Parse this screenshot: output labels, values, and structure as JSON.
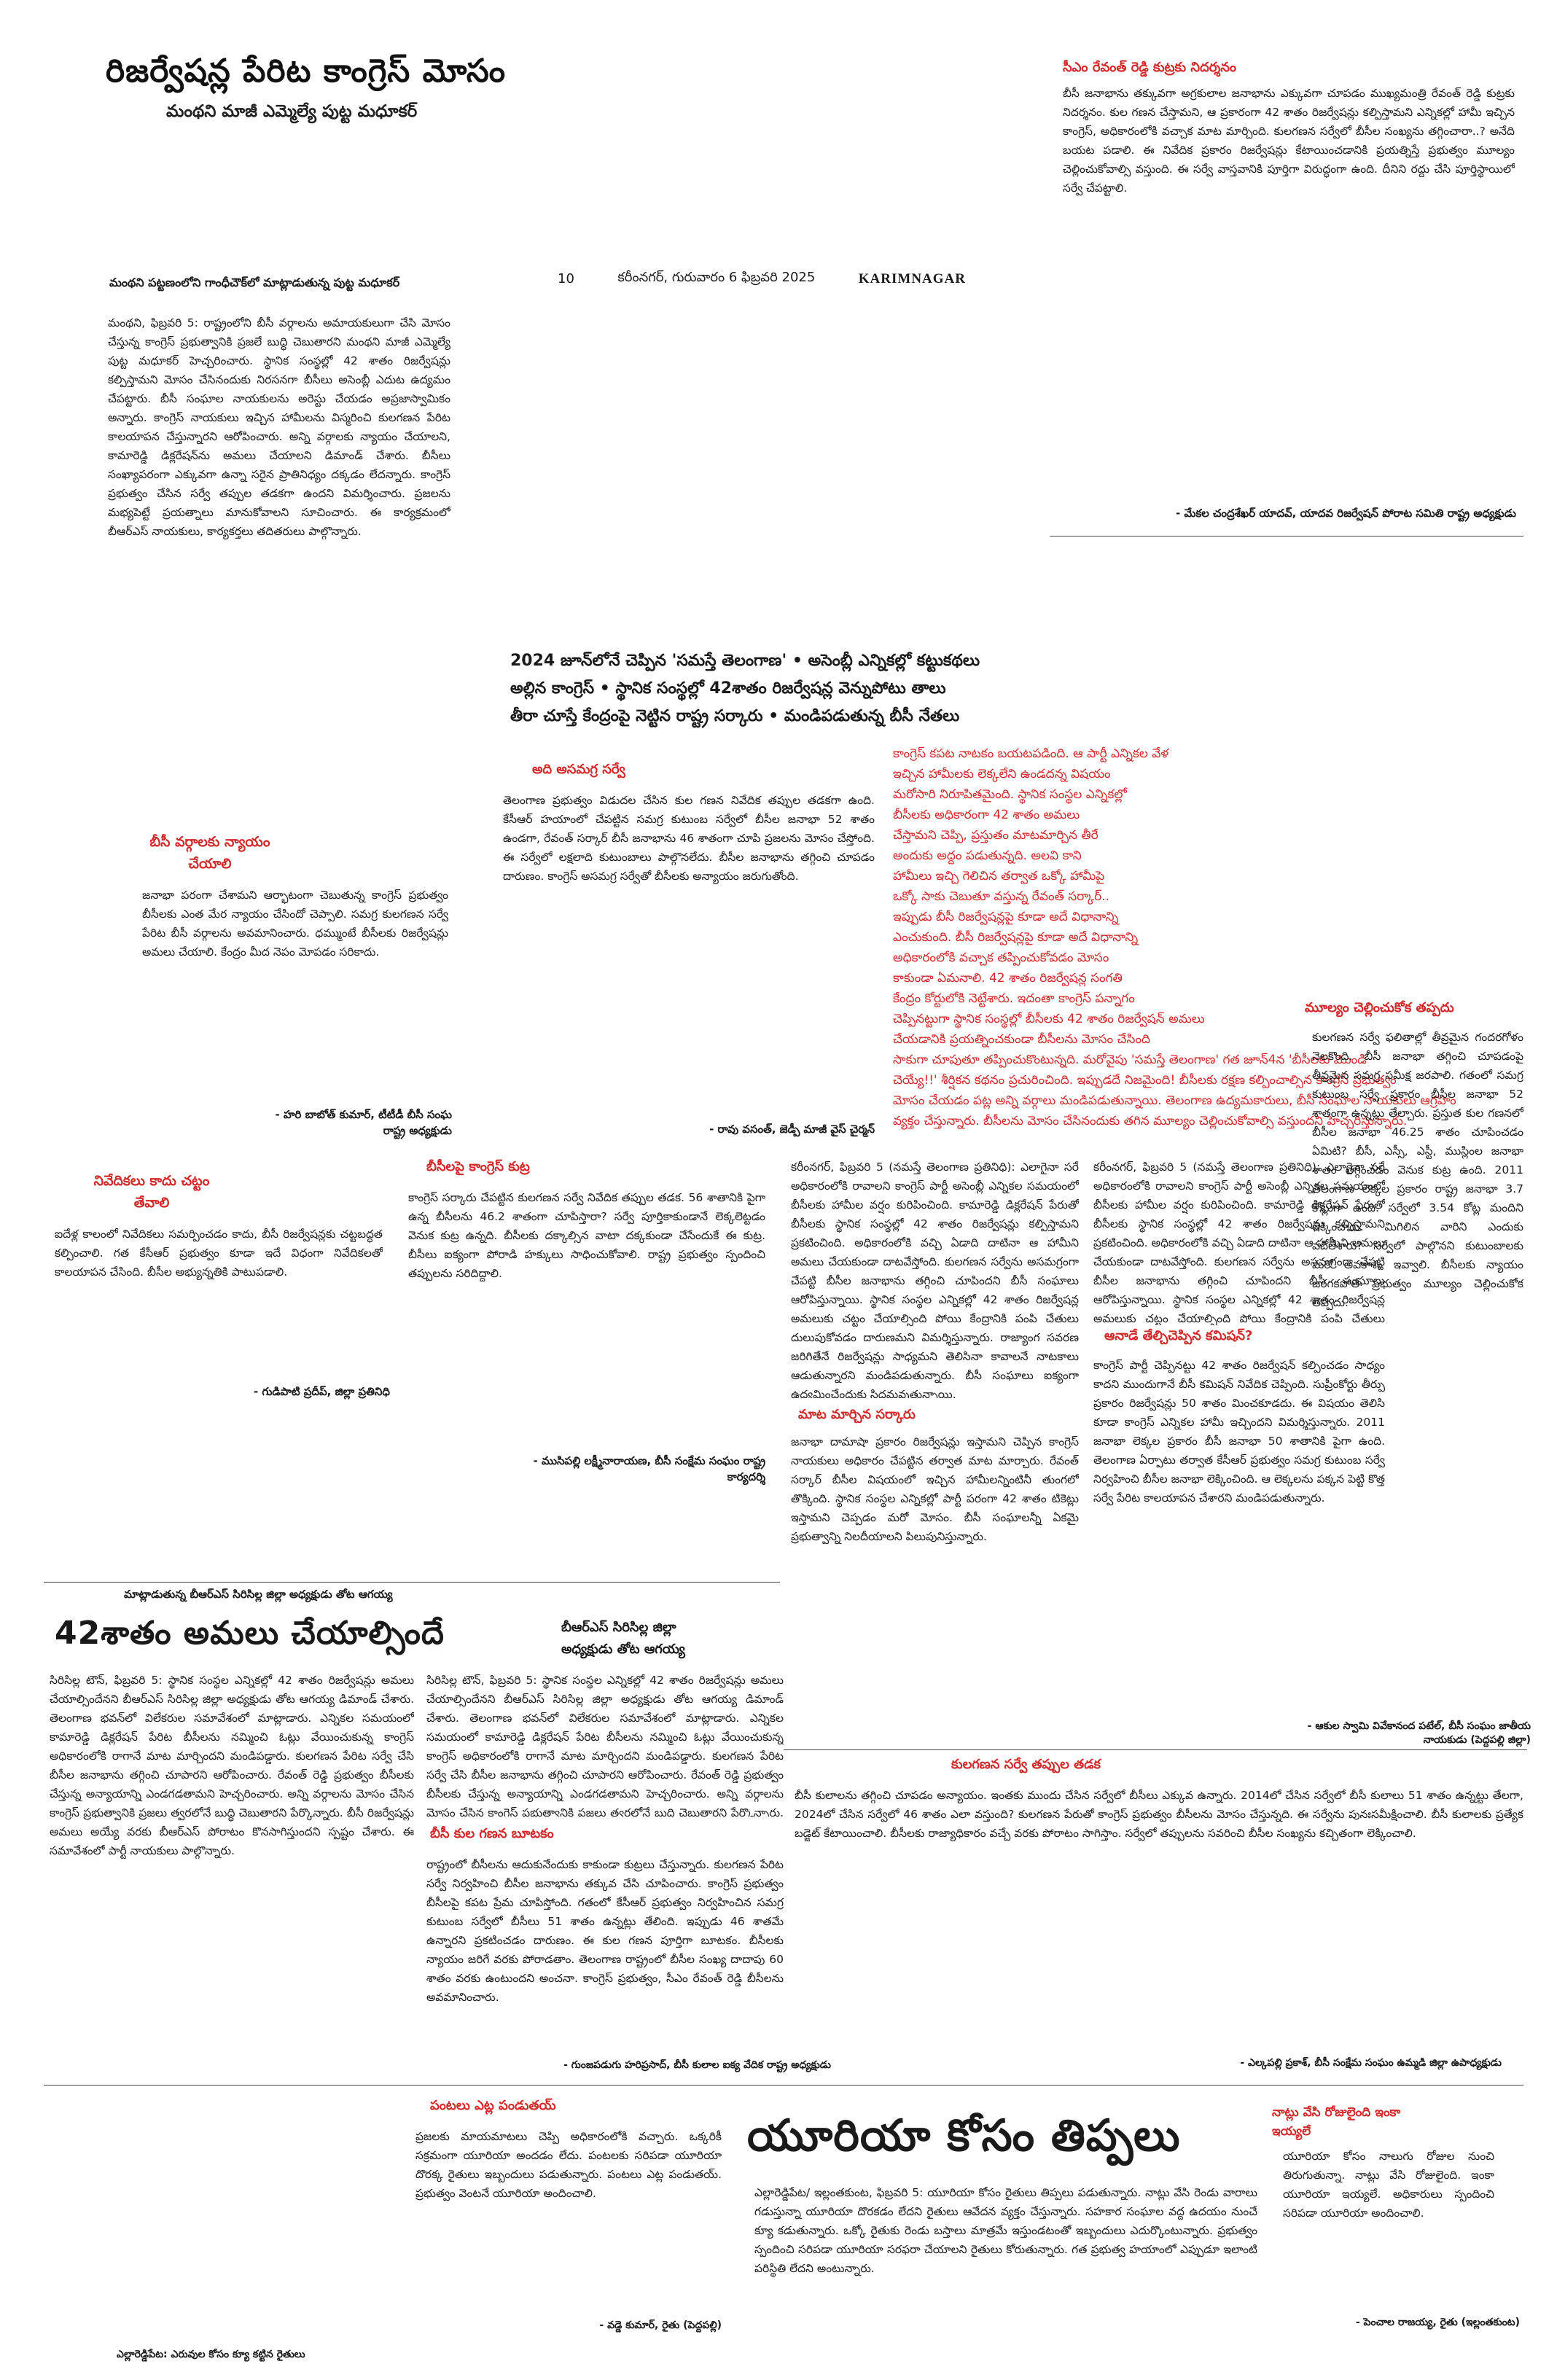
{
  "main_title": "రిజర్వేషన్ల పేరిట కాంగ్రెస్ మోసం",
  "main_subtitle": "మంథని మాజీ ఎమ్మెల్యే పుట్ట మధూకర్",
  "dateline": {
    "page": "10",
    "date": "కరీంనగర్, గురువారం 6 ఫిబ్రవరి 2025",
    "edition": "KARIMNAGAR"
  },
  "col1": {
    "head": "మంథని పట్టణంలోని గాంధీచౌక్‌లో మాట్లాడుతున్న పుట్ట మధూకర్",
    "body": "మంథని, ఫిబ్రవరి 5: రాష్ట్రంలోని బీసీ వర్గాలను అమాయకులుగా చేసి మోసం చేస్తున్న కాంగ్రెస్ ప్రభుత్వానికి ప్రజలే బుద్ధి చెబుతారని మంథని మాజీ ఎమ్మెల్యే పుట్ట మధూకర్ హెచ్చరించారు. స్థానిక సంస్థల్లో 42 శాతం రిజర్వేషన్లు కల్పిస్తామని మోసం చేసినందుకు నిరసనగా బీసీలు అసెంబ్లీ ఎదుట ఉద్యమం చేపట్టారు. బీసీ సంఘాల నాయకులను అరెస్టు చేయడం అప్రజాస్వామికం అన్నారు. కాంగ్రెస్ నాయకులు ఇచ్చిన హామీలను విస్మరించి కులగణన పేరిట కాలయాపన చేస్తున్నారని ఆరోపించారు. అన్ని వర్గాలకు న్యాయం చేయాలని, కామారెడ్డి డిక్లరేషన్‌ను అమలు చేయాలని డిమాండ్ చేశారు. బీసీలు సంఖ్యాపరంగా ఎక్కువగా ఉన్నా సరైన ప్రాతినిధ్యం దక్కడం లేదన్నారు. కాంగ్రెస్ ప్రభుత్వం చేసిన సర్వే తప్పుల తడకగా ఉందని విమర్శించారు. ప్రజలను మభ్యపెట్టే ప్రయత్నాలు మానుకోవాలని సూచించారు. ఈ కార్యక్రమంలో బీఆర్ఎస్ నాయకులు, కార్యకర్తలు తదితరులు పాల్గొన్నారు."
  },
  "box1": {
    "head": "బీసీ వర్గాలకు న్యాయం చేయాలి",
    "body": "జనాభా పరంగా చేశామని ఆర్భాటంగా చెబుతున్న కాంగ్రెస్ ప్రభుత్వం బీసీలకు ఎంత మేర న్యాయం చేసిందో చెప్పాలి. సమగ్ర కులగణన సర్వే పేరిట బీసీ వర్గాలను అవమానించారు. ధమ్ముంటే బీసీలకు రిజర్వేషన్లు అమలు చేయాలి. కేంద్రం మీద నెపం మోపడం సరికాదు.",
    "sig": "- హరి బాబోత్ కుమార్, టీటీడీ బీసీ సంఘ రాష్ట్ర అధ్యక్షుడు"
  },
  "box2": {
    "head": "నివేదికలు కాదు చట్టం తేవాలి",
    "body": "ఐదేళ్ల కాలంలో నివేదికలు సమర్పించడం కాదు, బీసీ రిజర్వేషన్లకు చట్టబద్ధత కల్పించాలి. గత కేసీఆర్ ప్రభుత్వం కూడా ఇదే విధంగా నివేదికలతో కాలయాపన చేసింది. బీసీల అభ్యున్నతికి పాటుపడాలి.",
    "sig": "- గుడిపాటి ప్రదీప్, జిల్లా ప్రతినిధి"
  },
  "col2": {
    "head": "అది అసమగ్ర సర్వే",
    "body": "తెలంగాణ ప్రభుత్వం విడుదల చేసిన కుల గణన నివేదిక తప్పుల తడకగా ఉంది. కేసీఆర్ హయాంలో చేపట్టిన సమగ్ర కుటుంబ సర్వేలో బీసీల జనాభా 52 శాతం ఉండగా, రేవంత్ సర్కార్ బీసీ జనాభాను 46 శాతంగా చూపి ప్రజలను మోసం చేస్తోంది. ఈ సర్వేలో లక్షలాది కుటుంబాలు పాల్గొనలేదు. బీసీల జనాభాను తగ్గించి చూపడం దారుణం. కాంగ్రెస్ అసమగ్ర సర్వేతో బీసీలకు అన్యాయం జరుగుతోంది.",
    "sig": "- రావు వసంత్, జెడ్పీ మాజీ వైస్ చైర్మన్"
  },
  "col3": {
    "head": "బీసీలపై కాంగ్రెస్ కుట్ర",
    "body": "కాంగ్రెస్ సర్కారు చేపట్టిన కులగణన సర్వే నివేదిక తప్పుల తడక. 56 శాతానికి పైగా ఉన్న బీసీలను 46.2 శాతంగా చూపిస్తారా? సర్వే పూర్తికాకుండానే లెక్కలెట్టడం వెనుక కుట్ర ఉన్నది. బీసీలకు దక్కాల్సిన వాటా దక్కకుండా చేసేందుకే ఈ కుట్ర. బీసీలు ఐక్యంగా పోరాడి హక్కులు సాధించుకోవాలి. రాష్ట్ర ప్రభుత్వం స్పందించి తప్పులను సరిదిద్దాలి.",
    "sig": "- ముసిపల్లి లక్ష్మీనారాయణ, బీసీ సంక్షేమ సంఘం రాష్ట్ర కార్యదర్శి"
  },
  "bullets": [
    "2024 జూన్‌లోనే చెప్పిన 'సమస్తే తెలంగాణ' • అసెంబ్లీ ఎన్నికల్లో కట్టుకథలు",
    "అల్లిన కాంగ్రెస్ • స్థానిక సంస్థల్లో 42శాతం రిజర్వేషన్ల వెన్నుపోటు తాలు",
    "తీరా చూస్తే కేంద్రంపై నెట్టిన రాష్ట్ర సర్కారు • మండిపడుతున్న బీసీ నేతలు"
  ],
  "red_lines": [
    "కాంగ్రెస్ కపట నాటకం బయటపడింది. ఆ పార్టీ ఎన్నికల వేళ",
    "ఇచ్చిన హామీలకు లెక్కలేని ఉండదన్న విషయం",
    "మరోసారి నిరూపితమైంది. స్థానిక సంస్థల ఎన్నికల్లో",
    "బీసీలకు అధికారంగా 42 శాతం అమలు",
    "చేస్తామని చెప్పి, ప్రస్తుతం మాటమార్చిన తీరే",
    "అందుకు అద్దం పడుతున్నది. అలవి కాని",
    "హామీలు ఇచ్చి గెలిచిన తర్వాత ఒక్కో హామీపై",
    "ఒక్కో సాకు చెబుతూ వస్తున్న రేవంత్ సర్కార్..",
    "ఇప్పుడు బీసీ రిజర్వేషన్లపై కూడా అదే విధానాన్ని",
    "ఎంచుకుంది. బీసీ రిజర్వేషన్లపై కూడా అదే విధానాన్ని",
    "అధికారంలోకి వచ్చాక తప్పించుకోవడం మోసం",
    "కాకుండా ఏమనాలి. 42 శాతం రిజర్వేషన్ల సంగతి",
    "కేంద్రం కోర్టులోకి నెట్టేశారు. ఇదంతా కాంగ్రెస్ పన్నాగం",
    "చెప్పినట్టుగా స్థానిక సంస్థల్లో బీసీలకు 42 శాతం రిజర్వేషన్ అమలు",
    "చేయడానికి ప్రయత్నించకుండా బీసీలను మోసం చేసింది",
    "సాకుగా చూపుతూ తప్పించుకొంటున్నది. మరోవైపు 'సమస్తే తెలంగాణ' గత జూన్4న 'బీసీలకు మొండి",
    "చెయ్యే!!' శీర్షికన కథనం ప్రచురించింది. ఇప్పుడదే నిజమైంది! బీసీలకు రక్షణ కల్పించాల్సిన కాంగ్రెస్ ప్రభుత్వం",
    "మోసం చేయడం పట్ల అన్ని వర్గాలు మండిపడుతున్నాయి. తెలంగాణ ఉద్యమకారులు, బీసీ సంఘాల నాయకులు ఆగ్రహం",
    "వ్యక్తం చేస్తున్నారు. బీసీలను మోసం చేసినందుకు తగిన మూల్యం చెల్లించుకోవాల్సి వస్తుందని హెచ్చరిస్తున్నారు."
  ],
  "middle_body": "కరీంనగర్, ఫిబ్రవరి 5 (నమస్తే తెలంగాణ ప్రతినిధి): ఎలాగైనా సరే అధికారంలోకి రావాలని కాంగ్రెస్ పార్టీ అసెంబ్లీ ఎన్నికల సమయంలో బీసీలకు హామీల వర్షం కురిపించింది. కామారెడ్డి డిక్లరేషన్ పేరుతో బీసీలకు స్థానిక సంస్థల్లో 42 శాతం రిజర్వేషన్లు కల్పిస్తామని ప్రకటించింది. అధికారంలోకి వచ్చి ఏడాది దాటినా ఆ హామీని అమలు చేయకుండా దాటవేస్తోంది. కులగణన సర్వేను అసమగ్రంగా చేపట్టి బీసీల జనాభాను తగ్గించి చూపిందని బీసీ సంఘాలు ఆరోపిస్తున్నాయి. స్థానిక సంస్థల ఎన్నికల్లో 42 శాతం రిజర్వేషన్ల అమలుకు చట్టం చేయాల్సింది పోయి కేంద్రానికి పంపి చేతులు దులుపుకోవడం దారుణమని విమర్శిస్తున్నారు. రాజ్యాంగ సవరణ జరిగితేనే రిజర్వేషన్లు సాధ్యమని తెలిసినా కావాలనే నాటకాలు ఆడుతున్నారని మండిపడుతున్నారు. బీసీ సంఘాలు ఐక్యంగా ఉద్యమించేందుకు సిద్ధమవుతున్నాయి.",
  "sub_head1": "మాట మార్చిన సర్కారు",
  "sub_body1": "జనాభా దామాషా ప్రకారం రిజర్వేషన్లు ఇస్తామని చెప్పిన కాంగ్రెస్ నాయకులు అధికారం చేపట్టిన తర్వాత మాట మార్చారు. రేవంత్ సర్కార్ బీసీల విషయంలో ఇచ్చిన హామీలన్నింటినీ తుంగలో తొక్కింది. స్థానిక సంస్థల ఎన్నికల్లో పార్టీ పరంగా 42 శాతం టికెట్లు ఇస్తామని చెప్పడం మరో మోసం. బీసీ సంఘాలన్నీ ఏకమై ప్రభుత్వాన్ని నిలదీయాలని పిలుపునిస్తున్నారు.",
  "sub_head2": "ఆనాడే తేల్చిచెప్పిన కమిషన్?",
  "sub_body2": "కాంగ్రెస్ పార్టీ చెప్పినట్టు 42 శాతం రిజర్వేషన్ కల్పించడం సాధ్యం కాదని ముందుగానే బీసీ కమిషన్ నివేదిక చెప్పింది. సుప్రీంకోర్టు తీర్పు ప్రకారం రిజర్వేషన్లు 50 శాతం మించకూడదు. ఈ విషయం తెలిసి కూడా కాంగ్రెస్ ఎన్నికల హామీ ఇచ్చిందని విమర్శిస్తున్నారు. 2011 జనాభా లెక్కల ప్రకారం బీసీ జనాభా 50 శాతానికి పైగా ఉంది. తెలంగాణ ఏర్పాటు తర్వాత కేసీఆర్ ప్రభుత్వం సమగ్ర కుటుంబ సర్వే నిర్వహించి బీసీల జనాభా లెక్కించింది. ఆ లెక్కలను పక్కన పెట్టి కొత్త సర్వే పేరిట కాలయాపన చేశారని మండిపడుతున్నారు.",
  "right_top": {
    "head": "సీఎం రేవంత్ రెడ్డి కుట్రకు నిదర్శనం",
    "body": "బీసీ జనాభాను తక్కువగా అగ్రకులాల జనాభాను ఎక్కువగా చూపడం ముఖ్యమంత్రి రేవంత్ రెడ్డి కుట్రకు నిదర్శనం. కుల గణన చేస్తామని, ఆ ప్రకారంగా 42 శాతం రిజర్వేషన్లు కల్పిస్తామని ఎన్నికల్లో హామీ ఇచ్చిన కాంగ్రెస్, అధికారంలోకి వచ్చాక మాట మార్చింది. కులగణన సర్వేలో బీసీల సంఖ్యను తగ్గించారా..? అనేది బయట పడాలి. ఈ నివేదిక ప్రకారం రిజర్వేషన్లు కేటాయించడానికి ప్రయత్నిస్తే ప్రభుత్వం మూల్యం చెల్లించుకోవాల్సి వస్తుంది. ఈ సర్వే వాస్తవానికి పూర్తిగా విరుద్ధంగా ఉంది. దీనిని రద్దు చేసి పూర్తిస్థాయిలో సర్వే చేపట్టాలి.",
    "sig": "- మేకల చంద్రశేఖర్ యాదవ్, యాదవ రిజర్వేషన్ పోరాట సమితి రాష్ట్ర అధ్యక్షుడు"
  },
  "right_mid": {
    "head": "మూల్యం చెల్లించుకోక తప్పదు",
    "body": "కులగణన సర్వే ఫలితాల్లో తీవ్రమైన గందరగోళం నెలకొంది. బీసీ జనాభా తగ్గించి చూపడంపై తీవ్రమైన సమగ్ర సమీక్ష జరపాలి. గతంలో సమగ్ర కుటుంబ సర్వే ప్రకారం బీసీల జనాభా 52 శాతంగా ఉన్నట్లు తేల్చారు. ప్రస్తుత కుల గణనలో బీసీల జనాభా 46.25 శాతం చూపించడం ఏమిటి? బీసీ, ఎస్సీ, ఎస్టీ, ముస్లింల జనాభా శాతం తగ్గించడం వెనుక కుట్ర ఉంది. 2011 తెలంగాణ లెక్కల ప్రకారం రాష్ట్ర జనాభా 3.7 కోట్లుగా ఉంది. సర్వేలో 3.54 కోట్ల మందిని లెక్కించారు. మిగిలిన వారిని ఎందుకు వదిలేశారు? సర్వేలో పాల్గొనని కుటుంబాలకు మరో అవకాశం ఇవ్వాలి. బీసీలకు న్యాయం జరగకపోతే ప్రభుత్వం మూల్యం చెల్లించుకోక తప్పదు.",
    "sig": "- ఆకుల స్వామి వివేకానంద పటేల్, బీసీ సంఘం జాతీయ నాయకుడు (పెద్దపల్లి జిల్లా)"
  },
  "bottom_left": {
    "kicker": "మాట్లాడుతున్న బీఆర్ఎస్ సిరిసిల్ల జిల్లా అధ్యక్షుడు తోట ఆగయ్య",
    "head": "42శాతం అమలు చేయాల్సిందే",
    "caption1": "బీఆర్ఎస్ సిరిసిల్ల జిల్లా",
    "caption2": "అధ్యక్షుడు తోట ఆగయ్య",
    "body": "సిరిసిల్ల టౌన్, ఫిబ్రవరి 5: స్థానిక సంస్థల ఎన్నికల్లో 42 శాతం రిజర్వేషన్లు అమలు చేయాల్సిందేనని బీఆర్ఎస్ సిరిసిల్ల జిల్లా అధ్యక్షుడు తోట ఆగయ్య డిమాండ్ చేశారు. తెలంగాణ భవన్‌లో విలేకరుల సమావేశంలో మాట్లాడారు. ఎన్నికల సమయంలో కామారెడ్డి డిక్లరేషన్ పేరిట బీసీలను నమ్మించి ఓట్లు వేయించుకున్న కాంగ్రెస్ అధికారంలోకి రాగానే మాట మార్చిందని మండిపడ్డారు. కులగణన పేరిట సర్వే చేసి బీసీల జనాభాను తగ్గించి చూపారని ఆరోపించారు. రేవంత్ రెడ్డి ప్రభుత్వం బీసీలకు చేస్తున్న అన్యాయాన్ని ఎండగడతామని హెచ్చరించారు. అన్ని వర్గాలను మోసం చేసిన కాంగ్రెస్ ప్రభుత్వానికి ప్రజలు త్వరలోనే బుద్ధి చెబుతారని పేర్కొన్నారు. బీసీ రిజర్వేషన్లు అమలు అయ్యే వరకు బీఆర్ఎస్ పోరాటం కొనసాగిస్తుందని స్పష్టం చేశారు. ఈ సమావేశంలో పార్టీ నాయకులు పాల్గొన్నారు."
  },
  "bottom_mid": {
    "head": "బీసీ కుల గణన బూటకం",
    "body": "రాష్ట్రంలో బీసీలను ఆదుకునేందుకు కాకుండా కుట్రలు చేస్తున్నారు. కులగణన పేరిట సర్వే నిర్వహించి బీసీల జనాభాను తక్కువ చేసి చూపించారు. కాంగ్రెస్ ప్రభుత్వం బీసీలపై కపట ప్రేమ చూపిస్తోంది. గతంలో కేసీఆర్ ప్రభుత్వం నిర్వహించిన సమగ్ర కుటుంబ సర్వేలో బీసీలు 51 శాతం ఉన్నట్లు తేలింది. ఇప్పుడు 46 శాతమే ఉన్నారని ప్రకటించడం దారుణం. ఈ కుల గణన పూర్తిగా బూటకం. బీసీలకు న్యాయం జరిగే వరకు పోరాడతాం. తెలంగాణ రాష్ట్రంలో బీసీల సంఖ్య దాదాపు 60 శాతం వరకు ఉంటుందని అంచనా. కాంగ్రెస్ ప్రభుత్వం, సీఎం రేవంత్ రెడ్డి బీసీలను అవమానించారు.",
    "sig": "- గుంజపడుగు హరిప్రసాద్, బీసీ కులాల ఐక్య వేదిక రాష్ట్ర అధ్యక్షుడు"
  },
  "bottom_right": {
    "head": "కులగణన సర్వే తప్పుల తడక",
    "body": "బీసీ కులాలను తగ్గించి చూపడం అన్యాయం. ఇంతకు ముందు చేసిన సర్వేలో బీసీలు ఎక్కువ ఉన్నారు. 2014లో చేసిన సర్వేలో బీసీ కులాలు 51 శాతం ఉన్నట్టు తేలగా, 2024లో చేసిన సర్వేలో 46 శాతం ఎలా వస్తుంది? కులగణన పేరుతో కాంగ్రెస్ ప్రభుత్వం బీసీలను మోసం చేస్తున్నది. ఈ సర్వేను పునఃసమీక్షించాలి. బీసీ కులాలకు ప్రత్యేక బడ్జెట్ కేటాయించాలి. బీసీలకు రాజ్యాధికారం వచ్చే వరకు పోరాటం సాగిస్తాం. సర్వేలో తప్పులను సవరించి బీసీల సంఖ్యను కచ్చితంగా లెక్కించాలి.",
    "sig": "- ఎల్కపల్లి ప్రకాశ్, బీసీ సంక్షేమ సంఘం ఉమ్మడి జిల్లా ఉపాధ్యక్షుడు"
  },
  "bottom_strip": {
    "left_head": "పంటలు ఎట్ల పండుతయ్",
    "left_body": "ప్రజలకు మాయమాటలు చెప్పి అధికారంలోకి వచ్చారు. ఒక్కరికీ సక్రమంగా యూరియా అందడం లేదు. పంటలకు సరిపడా యూరియా దొరక్క రైతులు ఇబ్బందులు పడుతున్నారు. పంటలు ఎట్ల పండుతయ్. ప్రభుత్వం వెంటనే యూరియా అందించాలి.",
    "left_sig": "- వడ్డె కుమార్, రైతు (పెద్దపల్లి)",
    "left_caption": "ఎల్లారెడ్డిపేట: ఎరువుల కోసం క్యూ కట్టిన రైతులు",
    "urea_head": "యూరియా కోసం తిప్పలు",
    "urea_body": "ఎల్లారెడ్డిపేట/ ఇల్లంతకుంట, ఫిబ్రవరి 5: యూరియా కోసం రైతులు తిప్పలు పడుతున్నారు. నాట్లు వేసి రెండు వారాలు గడుస్తున్నా యూరియా దొరకడం లేదని రైతులు ఆవేదన వ్యక్తం చేస్తున్నారు. సహకార సంఘాల వద్ద ఉదయం నుంచే క్యూ కడుతున్నారు. ఒక్కో రైతుకు రెండు బస్తాలు మాత్రమే ఇస్తుండటంతో ఇబ్బందులు ఎదుర్కొంటున్నారు. ప్రభుత్వం స్పందించి సరిపడా యూరియా సరఫరా చేయాలని రైతులు కోరుతున్నారు. గత ప్రభుత్వ హయాంలో ఎప్పుడూ ఇలాంటి పరిస్థితి లేదని అంటున్నారు.",
    "right_head": "నాట్లు వేసి రోజులైంది ఇంకా ఇయ్యలే",
    "right_body": "యూరియా కోసం నాలుగు రోజుల నుంచి తిరుగుతున్నా. నాట్లు వేసి రోజులైంది. ఇంకా యూరియా ఇయ్యలే. అధికారులు స్పందించి సరిపడా యూరియా అందించాలి.",
    "right_sig": "- పెంచాల రాజయ్య, రైతు (ఇల్లంతకుంట)"
  }
}
